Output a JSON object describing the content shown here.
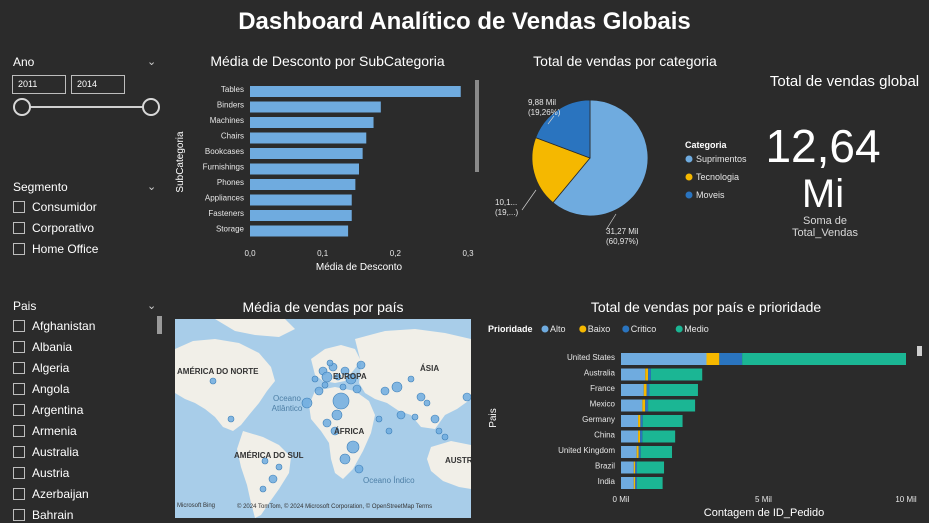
{
  "page_title": "Dashboard Analítico de Vendas Globais",
  "filters": {
    "ano": {
      "label": "Ano",
      "start": "2011",
      "end": "2014"
    },
    "segmento": {
      "label": "Segmento",
      "items": [
        "Consumidor",
        "Corporativo",
        "Home Office"
      ]
    },
    "pais": {
      "label": "Pais",
      "items": [
        "Afghanistan",
        "Albania",
        "Algeria",
        "Angola",
        "Argentina",
        "Armenia",
        "Australia",
        "Austria",
        "Azerbaijan",
        "Bahrain"
      ]
    }
  },
  "kpi": {
    "title": "Total de vendas global",
    "value_line1": "12,64",
    "value_line2": "Mi",
    "caption": "Soma de Total_Vendas"
  },
  "map": {
    "title": "Média de vendas por país",
    "labels": {
      "na": "AMÉRICA DO NORTE",
      "eu": "EUROPA",
      "as": "ÁSIA",
      "af": "ÁFRICA",
      "sa": "AMÉRICA DO SUL",
      "au": "AUSTR",
      "atl": "Oceano\nAtlântico",
      "ind": "Oceano Índico"
    },
    "footer": "© 2024 TomTom, © 2024 Microsoft Corporation, © OpenStreetMap  Terms",
    "brand": "Microsoft Bing"
  },
  "chart_data": [
    {
      "type": "bar",
      "orientation": "horizontal",
      "title": "Média de Desconto por SubCategoria",
      "xlabel": "Média de Desconto",
      "ylabel": "SubCategoria",
      "categories": [
        "Tables",
        "Binders",
        "Machines",
        "Chairs",
        "Bookcases",
        "Furnishings",
        "Phones",
        "Appliances",
        "Fasteners",
        "Storage"
      ],
      "values": [
        0.29,
        0.18,
        0.17,
        0.16,
        0.155,
        0.15,
        0.145,
        0.14,
        0.14,
        0.135
      ],
      "xlim": [
        0,
        0.3
      ],
      "xticks": [
        "0,0",
        "0,1",
        "0,2",
        "0,3"
      ],
      "color": "#6fabdf"
    },
    {
      "type": "pie",
      "title": "Total de vendas por categoria",
      "legend_title": "Categoria",
      "legend_position": "right",
      "slices": [
        {
          "name": "Suprimentos",
          "value": 31.27,
          "label": "31,27 Mil",
          "pct": "(60,97%)",
          "color": "#6fabdf"
        },
        {
          "name": "Tecnologia",
          "value": 10.1,
          "label": "10,1...",
          "pct": "(19,...)",
          "color": "#f5b800"
        },
        {
          "name": "Moveis",
          "value": 9.88,
          "label": "9,88 Mil",
          "pct": "(19,26%)",
          "color": "#2a74bf"
        }
      ]
    },
    {
      "type": "bar",
      "orientation": "horizontal",
      "stacked": true,
      "title": "Total de vendas por país e prioridade",
      "xlabel": "Contagem de ID_Pedido",
      "ylabel": "Pais",
      "legend_title": "Prioridade",
      "legend_position": "top-left",
      "categories": [
        "United States",
        "Australia",
        "France",
        "Mexico",
        "Germany",
        "China",
        "United Kingdom",
        "Brazil",
        "India"
      ],
      "series": [
        {
          "name": "Alto",
          "color": "#6fabdf",
          "values": [
            3.0,
            0.85,
            0.8,
            0.75,
            0.6,
            0.6,
            0.55,
            0.45,
            0.45
          ]
        },
        {
          "name": "Baixo",
          "color": "#f5b800",
          "values": [
            0.45,
            0.1,
            0.1,
            0.1,
            0.08,
            0.07,
            0.07,
            0.05,
            0.05
          ]
        },
        {
          "name": "Critico",
          "color": "#2a74bf",
          "values": [
            0.8,
            0.1,
            0.1,
            0.1,
            0.08,
            0.08,
            0.07,
            0.06,
            0.06
          ]
        },
        {
          "name": "Medio",
          "color": "#1bb694",
          "values": [
            5.75,
            1.8,
            1.7,
            1.65,
            1.4,
            1.15,
            1.1,
            0.95,
            0.9
          ]
        }
      ],
      "xlim": [
        0,
        10
      ],
      "xticks": [
        "0 Mil",
        "5 Mil",
        "10 Mil"
      ]
    }
  ]
}
